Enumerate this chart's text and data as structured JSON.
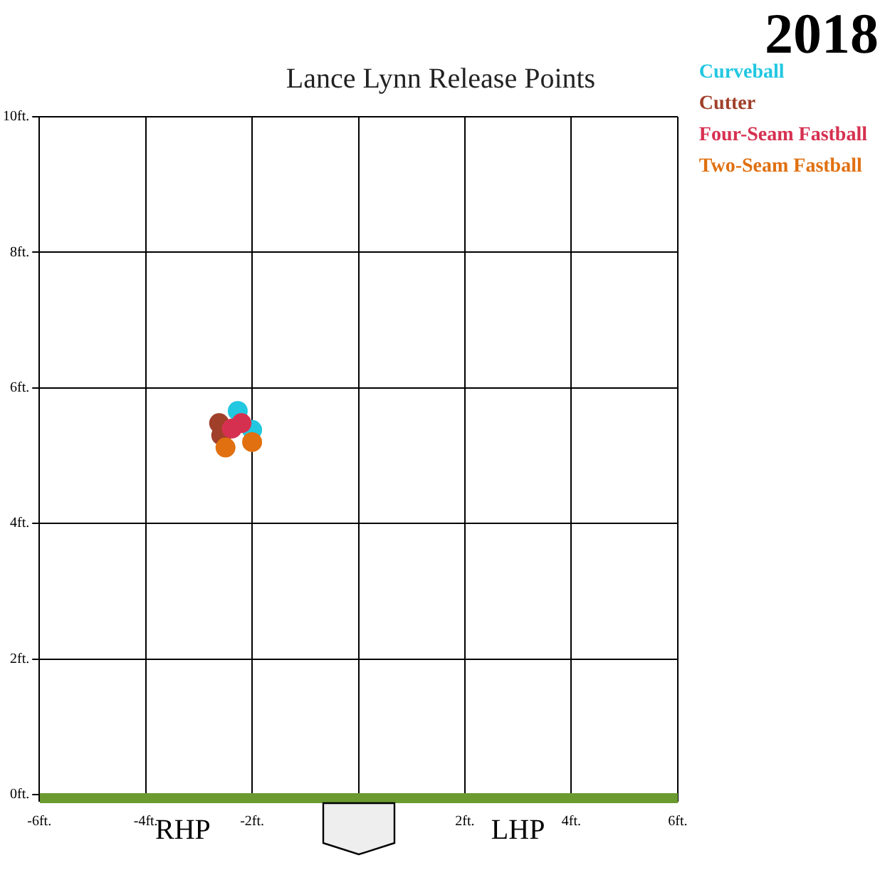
{
  "chart_data": {
    "type": "scatter",
    "title": "Lance Lynn Release Points",
    "annotations": [
      "2018",
      "RHP",
      "LHP"
    ],
    "xlim": [
      -6,
      6
    ],
    "xticks": [
      {
        "value": -6,
        "label": "-6ft."
      },
      {
        "value": -4,
        "label": "-4ft."
      },
      {
        "value": -2,
        "label": "-2ft."
      },
      {
        "value": 0,
        "label": null
      },
      {
        "value": 2,
        "label": "2ft."
      },
      {
        "value": 4,
        "label": "4ft."
      },
      {
        "value": 6,
        "label": "6ft."
      }
    ],
    "ylim": [
      0,
      10
    ],
    "yticks": [
      {
        "value": 0,
        "label": "0ft."
      },
      {
        "value": 2,
        "label": "2ft."
      },
      {
        "value": 4,
        "label": "4ft."
      },
      {
        "value": 6,
        "label": "6ft."
      },
      {
        "value": 8,
        "label": "8ft."
      },
      {
        "value": 10,
        "label": "10ft."
      }
    ],
    "grid": true,
    "legend": "top right",
    "marker": "circle",
    "series": [
      {
        "name": "Curveball",
        "color": "#22c7e0",
        "x": [
          -2.27,
          -2.0
        ],
        "values": [
          5.66,
          5.38
        ]
      },
      {
        "name": "Cutter",
        "color": "#a0402a",
        "x": [
          -2.62,
          -2.58
        ],
        "values": [
          5.48,
          5.3
        ]
      },
      {
        "name": "Four-Seam Fastball",
        "color": "#d63050",
        "x": [
          -2.38,
          -2.2
        ],
        "values": [
          5.4,
          5.48
        ]
      },
      {
        "name": "Two-Seam Fastball",
        "color": "#e07010",
        "x": [
          -2.5,
          -2.0
        ],
        "values": [
          5.12,
          5.2
        ]
      }
    ]
  }
}
